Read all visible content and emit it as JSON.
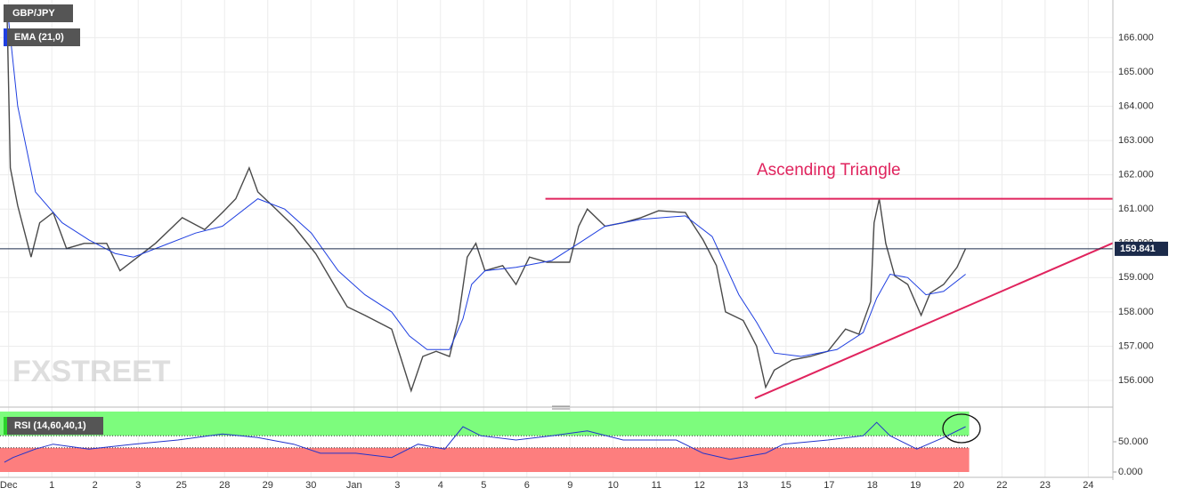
{
  "chart_data": {
    "type": "line",
    "symbol": "GBP/JPY",
    "annotation": "Ascending Triangle",
    "watermark": "FXSTREET",
    "price_line": 159.841,
    "xlim": [
      -0.2,
      25.57
    ],
    "ylim": [
      155.3,
      167.1
    ],
    "xticks": [
      {
        "value": 0,
        "label": "Dec"
      },
      1,
      2,
      3,
      {
        "value": 4,
        "label": "25"
      },
      {
        "value": 5,
        "label": "28"
      },
      {
        "value": 6,
        "label": "29"
      },
      {
        "value": 7,
        "label": "30"
      },
      {
        "value": 8,
        "label": "Jan"
      },
      {
        "value": 9,
        "label": "3"
      },
      {
        "value": 10,
        "label": "4"
      },
      {
        "value": 11,
        "label": "5"
      },
      {
        "value": 12,
        "label": "6"
      },
      {
        "value": 13,
        "label": "9"
      },
      {
        "value": 14,
        "label": "10"
      },
      {
        "value": 15,
        "label": "11"
      },
      {
        "value": 16,
        "label": "12"
      },
      {
        "value": 17,
        "label": "13"
      },
      {
        "value": 18,
        "label": "15"
      },
      {
        "value": 19,
        "label": "17"
      },
      {
        "value": 20,
        "label": "18"
      },
      {
        "value": 21,
        "label": "19"
      },
      {
        "value": 22,
        "label": "20"
      },
      {
        "value": 23,
        "label": "22"
      },
      {
        "value": 24,
        "label": "23"
      },
      {
        "value": 25,
        "label": "24"
      }
    ],
    "yticks": [
      {
        "value": 156,
        "label": "156.000"
      },
      {
        "value": 157,
        "label": "157.000"
      },
      {
        "value": 158,
        "label": "158.000"
      },
      {
        "value": 159,
        "label": "159.000"
      },
      {
        "value": 160,
        "label": "160.000"
      },
      {
        "value": 161,
        "label": "161.000"
      },
      {
        "value": 162,
        "label": "162.000"
      },
      {
        "value": 163,
        "label": "163.000"
      },
      {
        "value": 164,
        "label": "164.000"
      },
      {
        "value": 165,
        "label": "165.000"
      },
      {
        "value": 166,
        "label": "166.000"
      }
    ],
    "grid": true,
    "series": [
      {
        "name": "GBP/JPY",
        "color": "#4a4a4a",
        "x": [
          -0.04,
          0.04,
          0.21,
          0.52,
          0.72,
          1.03,
          1.34,
          1.75,
          2.27,
          2.58,
          2.99,
          3.4,
          4.02,
          4.54,
          4.95,
          5.26,
          5.57,
          5.77,
          6.19,
          6.6,
          7.11,
          7.53,
          7.84,
          8.25,
          8.87,
          9.07,
          9.32,
          9.59,
          9.9,
          10.21,
          10.41,
          10.62,
          10.82,
          11.03,
          11.44,
          11.75,
          12.06,
          12.47,
          12.99,
          13.2,
          13.4,
          13.81,
          14.23,
          14.64,
          15.05,
          15.67,
          16.08,
          16.39,
          16.6,
          17.01,
          17.32,
          17.53,
          17.73,
          18.14,
          18.56,
          18.97,
          19.38,
          19.69,
          19.96,
          20.04,
          20.16,
          20.31,
          20.52,
          20.82,
          21.13,
          21.34,
          21.65,
          21.96,
          22.16
        ],
        "values": [
          166.86,
          162.2,
          161.1,
          159.6,
          160.6,
          160.9,
          159.85,
          160.0,
          160.0,
          159.2,
          159.6,
          160.0,
          160.75,
          160.4,
          160.9,
          161.3,
          162.2,
          161.5,
          161.0,
          160.5,
          159.7,
          158.8,
          158.15,
          157.9,
          157.5,
          156.7,
          155.7,
          156.7,
          156.85,
          156.7,
          157.75,
          159.6,
          160.0,
          159.2,
          159.35,
          158.8,
          159.6,
          159.45,
          159.45,
          160.5,
          161.0,
          160.5,
          160.6,
          160.75,
          160.95,
          160.9,
          160.1,
          159.35,
          158.0,
          157.75,
          157.0,
          155.8,
          156.3,
          156.6,
          156.7,
          156.85,
          157.5,
          157.35,
          158.3,
          160.6,
          161.3,
          160.0,
          159.05,
          158.8,
          157.9,
          158.55,
          158.8,
          159.3,
          159.85
        ]
      },
      {
        "name": "EMA (21,0)",
        "color": "#1f3fe0",
        "x": [
          0,
          0.21,
          0.62,
          1.24,
          1.86,
          2.47,
          2.89,
          3.51,
          4.33,
          4.95,
          5.77,
          6.39,
          7.01,
          7.63,
          8.25,
          8.87,
          9.28,
          9.69,
          10.21,
          10.52,
          10.72,
          11.03,
          11.75,
          12.58,
          13.2,
          13.81,
          14.64,
          15.67,
          16.29,
          16.91,
          17.32,
          17.73,
          18.35,
          19.18,
          19.79,
          20.1,
          20.41,
          20.82,
          21.24,
          21.65,
          22.16
        ],
        "values": [
          166.5,
          164,
          161.5,
          160.6,
          160.1,
          159.7,
          159.6,
          159.9,
          160.3,
          160.5,
          161.3,
          161.0,
          160.3,
          159.2,
          158.5,
          158.0,
          157.3,
          156.9,
          156.9,
          157.8,
          158.8,
          159.2,
          159.3,
          159.5,
          160.0,
          160.5,
          160.7,
          160.8,
          160.2,
          158.5,
          157.7,
          156.8,
          156.7,
          156.9,
          157.4,
          158.4,
          159.1,
          159.0,
          158.5,
          158.6,
          159.1
        ]
      }
    ],
    "trendlines": [
      {
        "color": "#e0245e",
        "x": [
          12.43,
          25.57
        ],
        "values": [
          161.3,
          161.3
        ]
      },
      {
        "color": "#e0245e",
        "x": [
          17.28,
          25.57
        ],
        "values": [
          155.48,
          160.01
        ]
      }
    ],
    "rsi": {
      "name": "RSI (14,60,40,1)",
      "color": "#2233cc",
      "ylim": [
        0,
        100
      ],
      "yticks": [
        {
          "value": 0,
          "label": "0.000"
        },
        {
          "value": 50,
          "label": "50.000"
        }
      ],
      "levels": [
        40,
        60
      ],
      "x": [
        -0.1,
        0.1,
        0.62,
        1.03,
        1.86,
        2.89,
        3.92,
        4.95,
        5.77,
        6.6,
        7.22,
        8.04,
        8.87,
        9.48,
        10.1,
        10.52,
        10.93,
        11.75,
        12.58,
        13.4,
        14.23,
        15.46,
        16.08,
        16.7,
        17.53,
        17.94,
        18.97,
        19.79,
        20.1,
        20.41,
        21.03,
        21.65,
        22.16
      ],
      "values": [
        16,
        24,
        38,
        46,
        38,
        46,
        53,
        63,
        57,
        46,
        31,
        31,
        24,
        46,
        38,
        75,
        60,
        53,
        60,
        68,
        53,
        53,
        31,
        21,
        31,
        46,
        53,
        60,
        82,
        60,
        38,
        57,
        75
      ]
    }
  }
}
